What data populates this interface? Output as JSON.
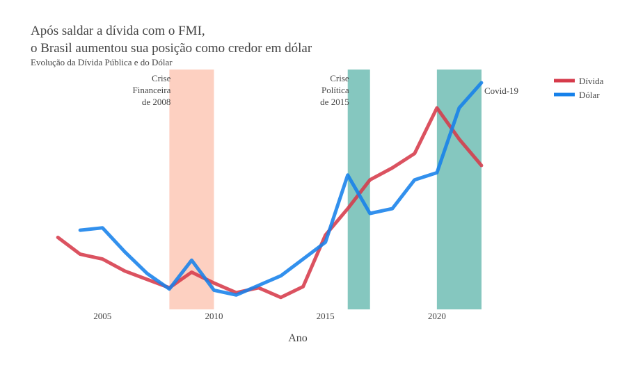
{
  "chart_data": {
    "type": "line",
    "title_lines": [
      "Após saldar a dívida com o FMI,",
      "o Brasil aumentou sua posição como credor em dólar"
    ],
    "subtitle": "Evolução da Dívida Pública e do Dólar",
    "xlabel": "Ano",
    "ylabel": "",
    "x_ticks": [
      2005,
      2010,
      2015,
      2020
    ],
    "xlim": [
      2002.9,
      2023.5
    ],
    "ylim": [
      0,
      100
    ],
    "grid": false,
    "legend_position": "top-right",
    "series": [
      {
        "name": "Dívida",
        "color": "#d63a4a",
        "x": [
          2003,
          2004,
          2005,
          2006,
          2007,
          2008,
          2009,
          2010,
          2011,
          2012,
          2013,
          2014,
          2015,
          2016,
          2017,
          2018,
          2019,
          2020,
          2021,
          2022
        ],
        "y": [
          30,
          23,
          21,
          16,
          12.5,
          9,
          15.5,
          11,
          7,
          9,
          5,
          9.5,
          31,
          42,
          54,
          59,
          65,
          84,
          71,
          60
        ]
      },
      {
        "name": "Dólar",
        "color": "#1681ea",
        "x": [
          2004,
          2005,
          2006,
          2007,
          2008,
          2009,
          2010,
          2011,
          2012,
          2013,
          2014,
          2015,
          2016,
          2017,
          2018,
          2019,
          2020,
          2021,
          2022
        ],
        "y": [
          33,
          34,
          24,
          15,
          8.5,
          20.5,
          8,
          6,
          10,
          14,
          21,
          28,
          56,
          40,
          42,
          54,
          57,
          84,
          94.5
        ]
      }
    ],
    "shaded_regions": [
      {
        "x0": 2008,
        "x1": 2010,
        "color": "#fcbca6",
        "opacity": 0.7,
        "label_lines": [
          "Crise",
          "Financeira",
          "de 2008"
        ]
      },
      {
        "x0": 2016,
        "x1": 2017,
        "color": "#56b1a6",
        "opacity": 0.72,
        "label_lines": [
          "Crise",
          "Política",
          "de 2015"
        ]
      },
      {
        "x0": 2020,
        "x1": 2022,
        "color": "#56b1a6",
        "opacity": 0.72,
        "label_lines": [
          "Covid-19"
        ]
      }
    ]
  }
}
